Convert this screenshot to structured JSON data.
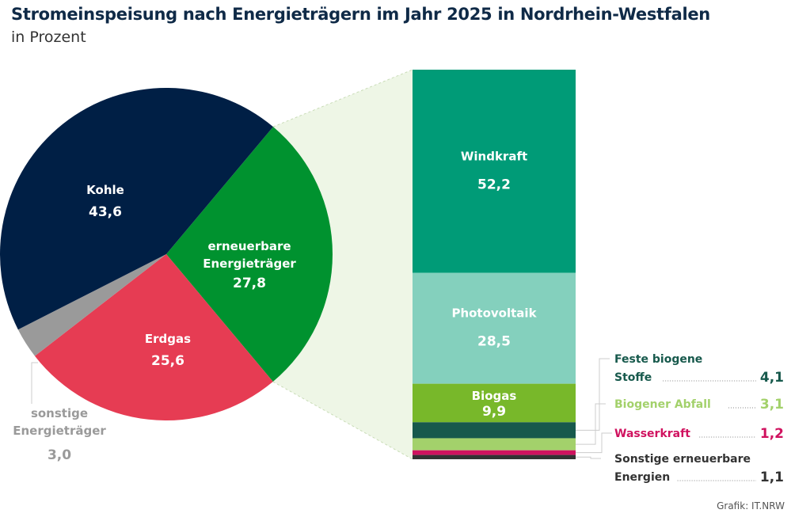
{
  "title": "Stromeinspeisung nach Energieträgern im Jahr 2025 in Nordrhein-Westfalen",
  "subtitle": "in Prozent",
  "credit": "Grafik: IT.NRW",
  "chart_data": [
    {
      "type": "pie",
      "title": "Stromeinspeisung nach Energieträgern",
      "slices": [
        {
          "label": "erneuerbare Energieträger",
          "value": 27.8,
          "display": "27,8",
          "color": "#00922f"
        },
        {
          "label": "Erdgas",
          "value": 25.6,
          "display": "25,6",
          "color": "#e63c53"
        },
        {
          "label": "sonstige Energieträger",
          "value": 3.0,
          "display": "3,0",
          "color": "#9a9a9a"
        },
        {
          "label": "Kohle",
          "value": 43.6,
          "display": "43,6",
          "color": "#001f45"
        }
      ]
    },
    {
      "type": "bar",
      "stacked": true,
      "title": "erneuerbare Energieträger",
      "segments": [
        {
          "label": "Windkraft",
          "value": 52.2,
          "display": "52,2",
          "color": "#009b77"
        },
        {
          "label": "Photovoltaik",
          "value": 28.5,
          "display": "28,5",
          "color": "#84d0bd"
        },
        {
          "label": "Biogas",
          "value": 9.9,
          "display": "9,9",
          "color": "#78b82a"
        },
        {
          "label": "Feste biogene Stoffe",
          "value": 4.1,
          "display": "4,1",
          "color": "#17594c"
        },
        {
          "label": "Biogener Abfall",
          "value": 3.1,
          "display": "3,1",
          "color": "#a3d16b"
        },
        {
          "label": "Wasserkraft",
          "value": 1.2,
          "display": "1,2",
          "color": "#d0125f"
        },
        {
          "label": "Sonstige erneuerbare Energien",
          "value": 1.1,
          "display": "1,1",
          "color": "#333333"
        }
      ]
    }
  ]
}
